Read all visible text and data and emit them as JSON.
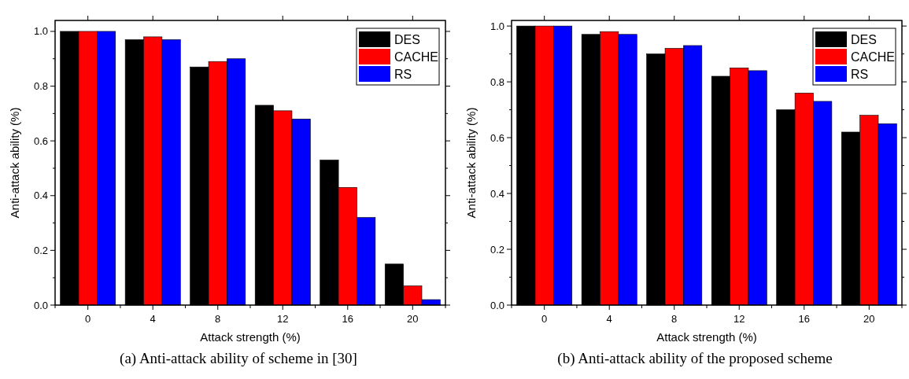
{
  "chart_data": [
    {
      "type": "bar",
      "xlabel": "Attack strength (%)",
      "ylabel": "Anti-attack ability (%)",
      "categories": [
        "0",
        "4",
        "8",
        "12",
        "16",
        "20"
      ],
      "series": [
        {
          "name": "DES",
          "color": "#000000",
          "values": [
            1.0,
            0.97,
            0.87,
            0.73,
            0.53,
            0.15
          ]
        },
        {
          "name": "CACHE",
          "color": "#ff0000",
          "values": [
            1.0,
            0.98,
            0.89,
            0.71,
            0.43,
            0.07
          ]
        },
        {
          "name": "RS",
          "color": "#0000ff",
          "values": [
            1.0,
            0.97,
            0.9,
            0.68,
            0.32,
            0.02
          ]
        }
      ],
      "ylim": [
        0,
        1.04
      ],
      "yticks": [
        {
          "value": 0,
          "label": "0.0"
        },
        {
          "value": 0.1,
          "label": null
        },
        {
          "value": 0.2,
          "label": "0.2"
        },
        {
          "value": 0.3,
          "label": null
        },
        {
          "value": 0.4,
          "label": "0.4"
        },
        {
          "value": 0.5,
          "label": null
        },
        {
          "value": 0.6,
          "label": "0.6"
        },
        {
          "value": 0.7,
          "label": null
        },
        {
          "value": 0.8,
          "label": "0.8"
        },
        {
          "value": 0.9,
          "label": null
        },
        {
          "value": 1,
          "label": "1.0"
        }
      ],
      "legend": "top right",
      "annotations": [
        "(a) Anti-attack ability of scheme in [30]"
      ]
    },
    {
      "type": "bar",
      "xlabel": "Attack strength (%)",
      "ylabel": "Anti-attack ability (%)",
      "categories": [
        "0",
        "4",
        "8",
        "12",
        "16",
        "20"
      ],
      "series": [
        {
          "name": "DES",
          "color": "#000000",
          "values": [
            1.0,
            0.97,
            0.9,
            0.82,
            0.7,
            0.62
          ]
        },
        {
          "name": "CACHE",
          "color": "#ff0000",
          "values": [
            1.0,
            0.98,
            0.92,
            0.85,
            0.76,
            0.68
          ]
        },
        {
          "name": "RS",
          "color": "#0000ff",
          "values": [
            1.0,
            0.97,
            0.93,
            0.84,
            0.73,
            0.65
          ]
        }
      ],
      "ylim": [
        0,
        1.02
      ],
      "yticks": [
        {
          "value": 0,
          "label": "0.0"
        },
        {
          "value": 0.1,
          "label": null
        },
        {
          "value": 0.2,
          "label": "0.2"
        },
        {
          "value": 0.3,
          "label": null
        },
        {
          "value": 0.4,
          "label": "0.4"
        },
        {
          "value": 0.5,
          "label": null
        },
        {
          "value": 0.6,
          "label": "0.6"
        },
        {
          "value": 0.7,
          "label": null
        },
        {
          "value": 0.8,
          "label": "0.8"
        },
        {
          "value": 0.9,
          "label": null
        },
        {
          "value": 1,
          "label": "1.0"
        }
      ],
      "legend": "top right",
      "annotations": [
        "(b) Anti-attack ability of the proposed scheme"
      ]
    }
  ]
}
